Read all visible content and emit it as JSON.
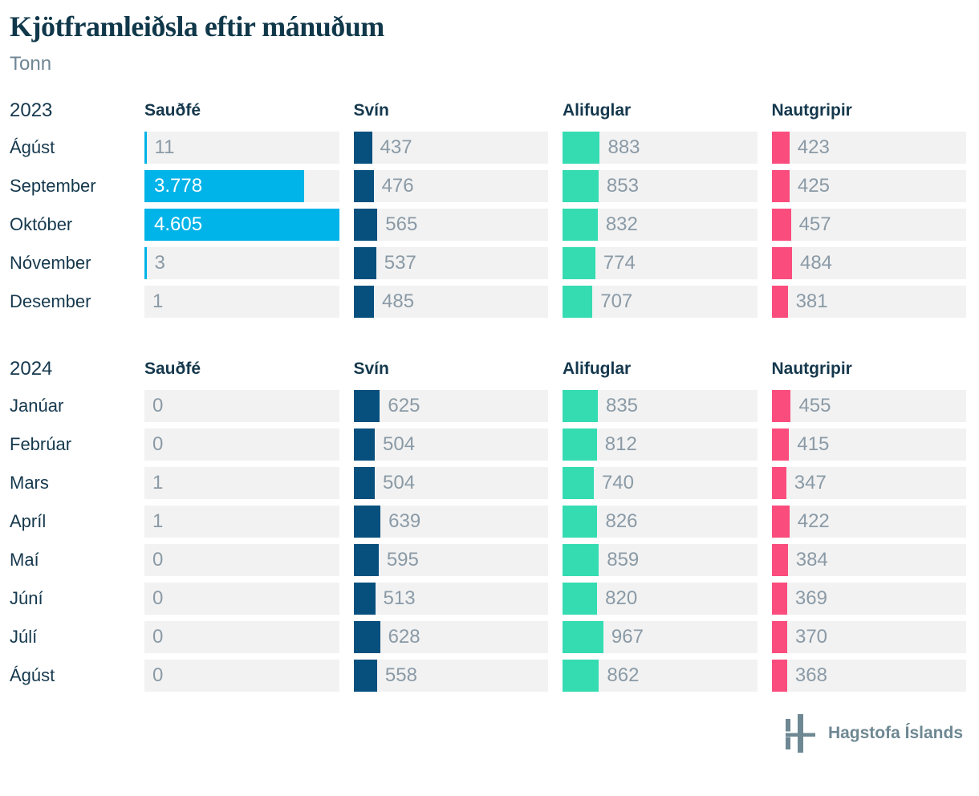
{
  "title": "Kjötframleiðsla eftir mánuðum",
  "subtitle": "Tonn",
  "footer": {
    "brand": "Hagstofa Íslands"
  },
  "colors": {
    "saudfe": "#00b3e8",
    "svin": "#07507e",
    "alifuglar": "#35dcb2",
    "nautgripir": "#fa4d7d",
    "row_background": "#f2f2f2",
    "label_text": "#15384d",
    "value_text": "#8a9aa6",
    "value_text_inside_bar": "#ffffff",
    "logo": "#6e8893"
  },
  "chart_data": {
    "type": "bar",
    "title": "Kjötframleiðsla eftir mánuðum",
    "unit": "Tonn",
    "layout": "split-bars-table, shared linear scale across all columns, no axis shown",
    "scale_max": 4605,
    "series_names": [
      "Sauðfé",
      "Svín",
      "Alifuglar",
      "Nautgripir"
    ],
    "series_colors": [
      "#00b3e8",
      "#07507e",
      "#35dcb2",
      "#fa4d7d"
    ],
    "sections": [
      {
        "year": "2023",
        "months": [
          "Ágúst",
          "September",
          "Október",
          "Nóvember",
          "Desember"
        ],
        "series": [
          {
            "name": "Sauðfé",
            "values": [
              11,
              3778,
              4605,
              3,
              1
            ],
            "labels": [
              "11",
              "3.778",
              "4.605",
              "3",
              "1"
            ]
          },
          {
            "name": "Svín",
            "values": [
              437,
              476,
              565,
              537,
              485
            ],
            "labels": [
              "437",
              "476",
              "565",
              "537",
              "485"
            ]
          },
          {
            "name": "Alifuglar",
            "values": [
              883,
              853,
              832,
              774,
              707
            ],
            "labels": [
              "883",
              "853",
              "832",
              "774",
              "707"
            ]
          },
          {
            "name": "Nautgripir",
            "values": [
              423,
              425,
              457,
              484,
              381
            ],
            "labels": [
              "423",
              "425",
              "457",
              "484",
              "381"
            ]
          }
        ]
      },
      {
        "year": "2024",
        "months": [
          "Janúar",
          "Febrúar",
          "Mars",
          "Apríl",
          "Maí",
          "Júní",
          "Júlí",
          "Ágúst"
        ],
        "series": [
          {
            "name": "Sauðfé",
            "values": [
              0,
              0,
              1,
              1,
              0,
              0,
              0,
              0
            ],
            "labels": [
              "0",
              "0",
              "1",
              "1",
              "0",
              "0",
              "0",
              "0"
            ]
          },
          {
            "name": "Svín",
            "values": [
              625,
              504,
              504,
              639,
              595,
              513,
              628,
              558
            ],
            "labels": [
              "625",
              "504",
              "504",
              "639",
              "595",
              "513",
              "628",
              "558"
            ]
          },
          {
            "name": "Alifuglar",
            "values": [
              835,
              812,
              740,
              826,
              859,
              820,
              967,
              862
            ],
            "labels": [
              "835",
              "812",
              "740",
              "826",
              "859",
              "820",
              "967",
              "862"
            ]
          },
          {
            "name": "Nautgripir",
            "values": [
              455,
              415,
              347,
              422,
              384,
              369,
              370,
              368
            ],
            "labels": [
              "455",
              "415",
              "347",
              "422",
              "384",
              "369",
              "370",
              "368"
            ]
          }
        ]
      }
    ]
  }
}
